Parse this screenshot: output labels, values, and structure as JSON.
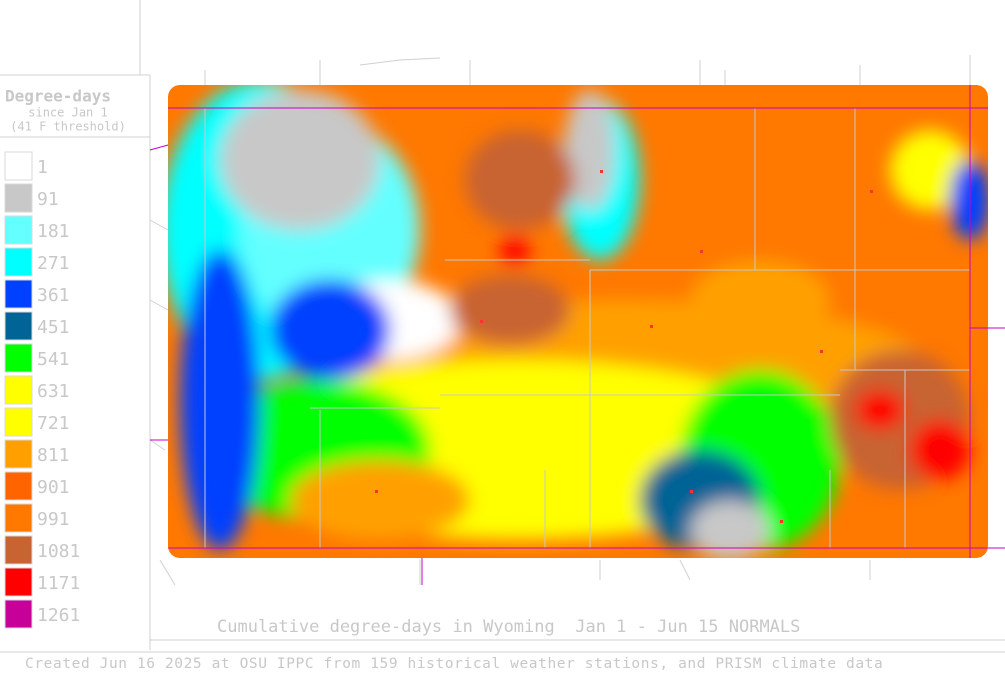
{
  "legend": {
    "title": "Degree-days",
    "subtitle": "since Jan 1",
    "threshold": "(41 F threshold)",
    "items": [
      {
        "label": "1",
        "color": "#ffffff"
      },
      {
        "label": "91",
        "color": "#c8c8c8"
      },
      {
        "label": "181",
        "color": "#64ffff"
      },
      {
        "label": "271",
        "color": "#00ffff"
      },
      {
        "label": "361",
        "color": "#0040ff"
      },
      {
        "label": "451",
        "color": "#006496"
      },
      {
        "label": "541",
        "color": "#00ff00"
      },
      {
        "label": "631",
        "color": "#ffff00"
      },
      {
        "label": "721",
        "color": "#ffff00"
      },
      {
        "label": "811",
        "color": "#ffa000"
      },
      {
        "label": "901",
        "color": "#ff6400"
      },
      {
        "label": "991",
        "color": "#ff7800"
      },
      {
        "label": "1081",
        "color": "#c86432"
      },
      {
        "label": "1171",
        "color": "#ff0000"
      },
      {
        "label": "1261",
        "color": "#c8009a"
      }
    ]
  },
  "caption": "Cumulative degree-days in Wyoming  Jan 1 - Jun 15 NORMALS",
  "footer": "Created Jun 16 2025 at OSU IPPC from 159 historical weather stations, and PRISM climate data"
}
